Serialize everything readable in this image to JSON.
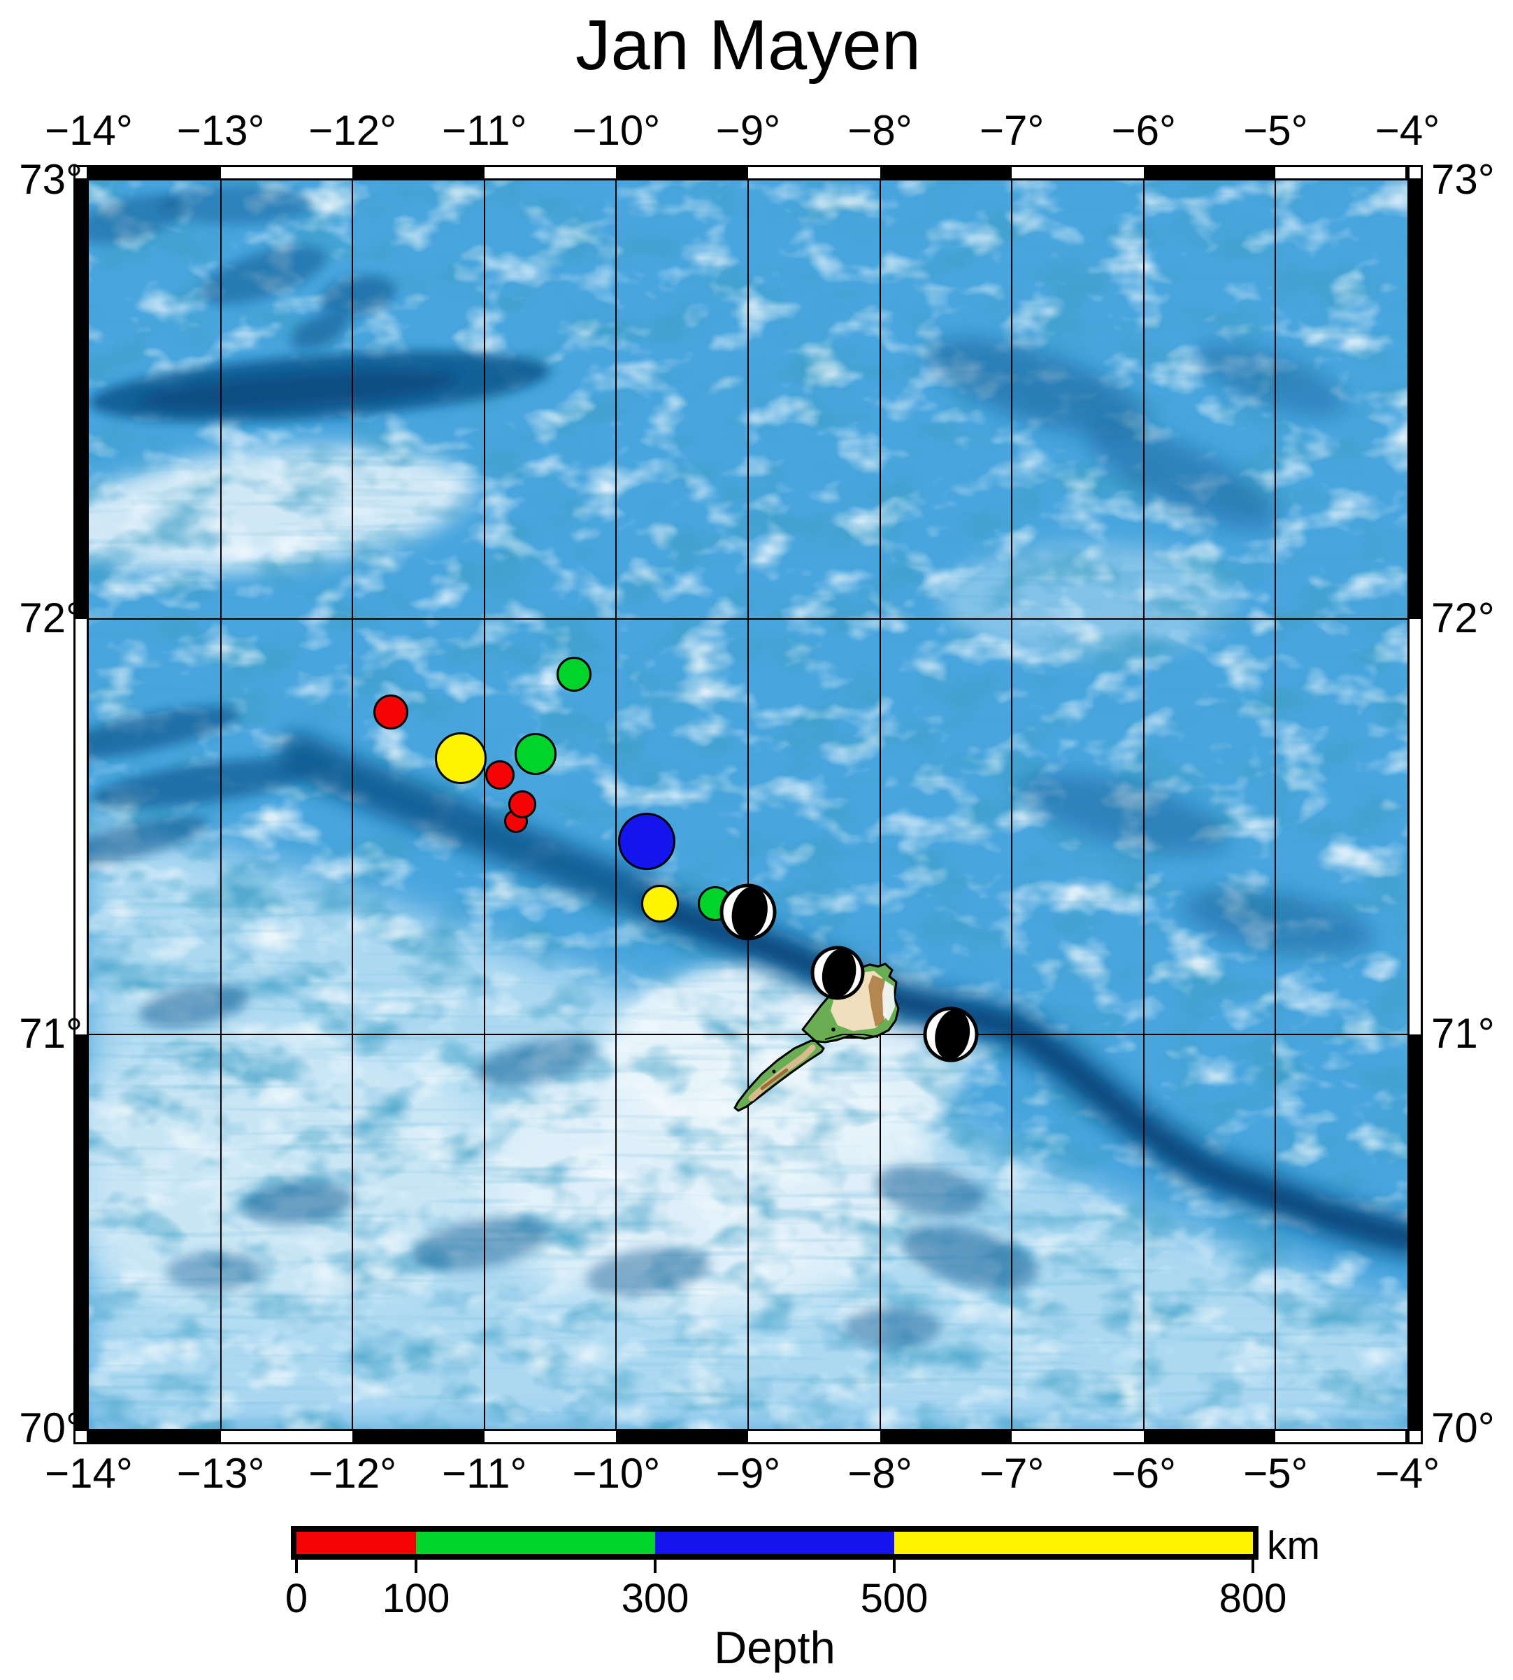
{
  "title": "Jan Mayen",
  "map": {
    "projection": "mercator",
    "lon_min": -14,
    "lon_max": -4,
    "lat_min": 70,
    "lat_max": 73,
    "lon_labels": [
      {
        "lon": -14,
        "text": "−14°"
      },
      {
        "lon": -13,
        "text": "−13°"
      },
      {
        "lon": -12,
        "text": "−12°"
      },
      {
        "lon": -11,
        "text": "−11°"
      },
      {
        "lon": -10,
        "text": "−10°"
      },
      {
        "lon": -9,
        "text": "−9°"
      },
      {
        "lon": -8,
        "text": "−8°"
      },
      {
        "lon": -7,
        "text": "−7°"
      },
      {
        "lon": -6,
        "text": "−6°"
      },
      {
        "lon": -5,
        "text": "−5°"
      },
      {
        "lon": -4,
        "text": "−4°"
      }
    ],
    "lat_labels": [
      {
        "lat": 73,
        "text": "73°"
      },
      {
        "lat": 72,
        "text": "72°"
      },
      {
        "lat": 71,
        "text": "71°"
      },
      {
        "lat": 70,
        "text": "70°"
      }
    ],
    "grid_lons": [
      -13,
      -12,
      -11,
      -10,
      -9,
      -8,
      -7,
      -6,
      -5
    ],
    "grid_lats": [
      72,
      71
    ],
    "band_lons": [
      -14,
      -13,
      -12,
      -11,
      -10,
      -9,
      -8,
      -7,
      -6,
      -5,
      -4
    ],
    "band_lats": [
      73,
      72,
      71,
      70
    ]
  },
  "earthquakes": [
    {
      "lon": -10.32,
      "lat": 71.87,
      "depth_range_km": "100–300",
      "color": "#00d42a",
      "r": 25
    },
    {
      "lon": -11.71,
      "lat": 71.78,
      "depth_range_km": "0–100",
      "color": "#f40404",
      "r": 25
    },
    {
      "lon": -11.18,
      "lat": 71.67,
      "depth_range_km": "500–800",
      "color": "#fef400",
      "r": 37
    },
    {
      "lon": -10.61,
      "lat": 71.68,
      "depth_range_km": "100–300",
      "color": "#00d42a",
      "r": 30
    },
    {
      "lon": -10.88,
      "lat": 71.63,
      "depth_range_km": "0–100",
      "color": "#f40404",
      "r": 21
    },
    {
      "lon": -10.76,
      "lat": 71.52,
      "depth_range_km": "0–100",
      "color": "#f40404",
      "r": 17
    },
    {
      "lon": -10.71,
      "lat": 71.56,
      "depth_range_km": "0–100",
      "color": "#f40404",
      "r": 20
    },
    {
      "lon": -9.77,
      "lat": 71.47,
      "depth_range_km": "300–500",
      "color": "#1414ee",
      "r": 41
    },
    {
      "lon": -9.67,
      "lat": 71.32,
      "depth_range_km": "500–800",
      "color": "#fef400",
      "r": 27
    },
    {
      "lon": -9.25,
      "lat": 71.32,
      "depth_range_km": "100–300",
      "color": "#00d42a",
      "r": 25
    }
  ],
  "focal_mechanisms": [
    {
      "lon": -9.0,
      "lat": 71.3,
      "r": 38
    },
    {
      "lon": -8.32,
      "lat": 71.15,
      "r": 36
    },
    {
      "lon": -7.46,
      "lat": 71.0,
      "r": 37
    }
  ],
  "legend": {
    "caption": "Depth",
    "unit": "km",
    "min": 0,
    "max": 800,
    "tick_values": [
      0,
      100,
      300,
      500,
      800
    ],
    "tick_texts": [
      "0",
      "100",
      "300",
      "500",
      "800"
    ],
    "segments": [
      {
        "from": 0,
        "to": 100,
        "color": "#f40404"
      },
      {
        "from": 100,
        "to": 300,
        "color": "#00d42a"
      },
      {
        "from": 300,
        "to": 500,
        "color": "#1414ee"
      },
      {
        "from": 500,
        "to": 800,
        "color": "#fef400"
      }
    ]
  },
  "colors": {
    "sea_base": "#49a5de",
    "sea_dark": "#0d5a92",
    "sea_pale": "#e9f5fc",
    "island_green": "#69ae52",
    "island_tan": "#f0dfbd",
    "island_brown": "#a9773d",
    "frame_black": "#000000",
    "frame_white": "#ffffff"
  }
}
